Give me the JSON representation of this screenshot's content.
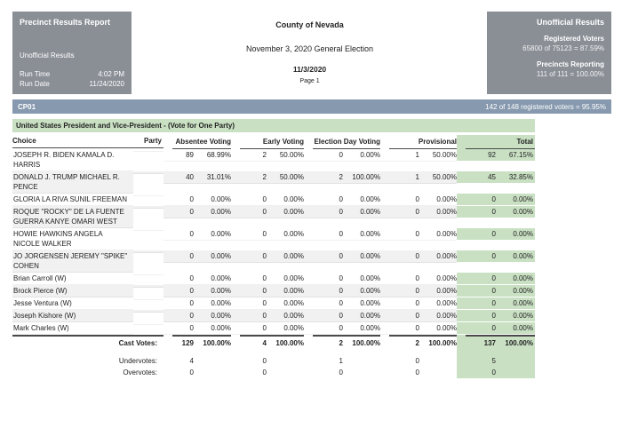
{
  "header": {
    "left": {
      "title": "Precinct Results Report",
      "status": "Unofficial Results",
      "run_time_label": "Run Time",
      "run_time_value": "4:02 PM",
      "run_date_label": "Run Date",
      "run_date_value": "11/24/2020"
    },
    "center": {
      "county": "County of Nevada",
      "election": "November 3, 2020 General Election",
      "date": "11/3/2020",
      "page": "Page 1"
    },
    "right": {
      "title": "Unofficial Results",
      "registered_label": "Registered Voters",
      "registered_value": "65800 of 75123 = 87.59%",
      "precincts_label": "Precincts Reporting",
      "precincts_value": "111 of 111 = 100.00%"
    }
  },
  "precinct": {
    "id": "CP01",
    "turnout": "142 of 148 registered voters = 95.95%"
  },
  "contest": {
    "title": "United States President and Vice-President - (Vote for One Party)",
    "columns": {
      "choice": "Choice",
      "party": "Party",
      "absentee": "Absentee Voting",
      "early": "Early Voting",
      "election_day": "Election Day Voting",
      "provisional": "Provisional",
      "total": "Total"
    },
    "rows": [
      {
        "choice": "JOSEPH R. BIDEN KAMALA D. HARRIS",
        "party": "",
        "cells": [
          [
            "89",
            "68.99%"
          ],
          [
            "2",
            "50.00%"
          ],
          [
            "0",
            "0.00%"
          ],
          [
            "1",
            "50.00%"
          ],
          [
            "92",
            "67.15%"
          ]
        ]
      },
      {
        "choice": "DONALD J. TRUMP MICHAEL R. PENCE",
        "party": "",
        "cells": [
          [
            "40",
            "31.01%"
          ],
          [
            "2",
            "50.00%"
          ],
          [
            "2",
            "100.00%"
          ],
          [
            "1",
            "50.00%"
          ],
          [
            "45",
            "32.85%"
          ]
        ]
      },
      {
        "choice": "GLORIA LA RIVA SUNIL FREEMAN",
        "party": "",
        "cells": [
          [
            "0",
            "0.00%"
          ],
          [
            "0",
            "0.00%"
          ],
          [
            "0",
            "0.00%"
          ],
          [
            "0",
            "0.00%"
          ],
          [
            "0",
            "0.00%"
          ]
        ]
      },
      {
        "choice": "ROQUE \"ROCKY\" DE LA FUENTE GUERRA KANYE OMARI WEST",
        "party": "",
        "cells": [
          [
            "0",
            "0.00%"
          ],
          [
            "0",
            "0.00%"
          ],
          [
            "0",
            "0.00%"
          ],
          [
            "0",
            "0.00%"
          ],
          [
            "0",
            "0.00%"
          ]
        ]
      },
      {
        "choice": "HOWIE HAWKINS ANGELA NICOLE WALKER",
        "party": "",
        "cells": [
          [
            "0",
            "0.00%"
          ],
          [
            "0",
            "0.00%"
          ],
          [
            "0",
            "0.00%"
          ],
          [
            "0",
            "0.00%"
          ],
          [
            "0",
            "0.00%"
          ]
        ]
      },
      {
        "choice": "JO JORGENSEN JEREMY \"SPIKE\" COHEN",
        "party": "",
        "cells": [
          [
            "0",
            "0.00%"
          ],
          [
            "0",
            "0.00%"
          ],
          [
            "0",
            "0.00%"
          ],
          [
            "0",
            "0.00%"
          ],
          [
            "0",
            "0.00%"
          ]
        ]
      },
      {
        "choice": "Brian Carroll (W)",
        "party": "",
        "cells": [
          [
            "0",
            "0.00%"
          ],
          [
            "0",
            "0.00%"
          ],
          [
            "0",
            "0.00%"
          ],
          [
            "0",
            "0.00%"
          ],
          [
            "0",
            "0.00%"
          ]
        ]
      },
      {
        "choice": "Brock Pierce (W)",
        "party": "",
        "cells": [
          [
            "0",
            "0.00%"
          ],
          [
            "0",
            "0.00%"
          ],
          [
            "0",
            "0.00%"
          ],
          [
            "0",
            "0.00%"
          ],
          [
            "0",
            "0.00%"
          ]
        ]
      },
      {
        "choice": "Jesse Ventura (W)",
        "party": "",
        "cells": [
          [
            "0",
            "0.00%"
          ],
          [
            "0",
            "0.00%"
          ],
          [
            "0",
            "0.00%"
          ],
          [
            "0",
            "0.00%"
          ],
          [
            "0",
            "0.00%"
          ]
        ]
      },
      {
        "choice": "Joseph Kishore (W)",
        "party": "",
        "cells": [
          [
            "0",
            "0.00%"
          ],
          [
            "0",
            "0.00%"
          ],
          [
            "0",
            "0.00%"
          ],
          [
            "0",
            "0.00%"
          ],
          [
            "0",
            "0.00%"
          ]
        ]
      },
      {
        "choice": "Mark Charles (W)",
        "party": "",
        "cells": [
          [
            "0",
            "0.00%"
          ],
          [
            "0",
            "0.00%"
          ],
          [
            "0",
            "0.00%"
          ],
          [
            "0",
            "0.00%"
          ],
          [
            "0",
            "0.00%"
          ]
        ]
      }
    ],
    "summary": [
      {
        "label": "Cast Votes:",
        "bold": true,
        "cells": [
          [
            "129",
            "100.00%"
          ],
          [
            "4",
            "100.00%"
          ],
          [
            "2",
            "100.00%"
          ],
          [
            "2",
            "100.00%"
          ],
          [
            "137",
            "100.00%"
          ]
        ]
      },
      {
        "label": "Undervotes:",
        "bold": false,
        "cells": [
          [
            "4",
            ""
          ],
          [
            "0",
            ""
          ],
          [
            "1",
            ""
          ],
          [
            "0",
            ""
          ],
          [
            "5",
            ""
          ]
        ]
      },
      {
        "label": "Overvotes:",
        "bold": false,
        "cells": [
          [
            "0",
            ""
          ],
          [
            "0",
            ""
          ],
          [
            "0",
            ""
          ],
          [
            "0",
            ""
          ],
          [
            "0",
            ""
          ]
        ]
      }
    ]
  },
  "colors": {
    "header_box_gray": "#8A8F96",
    "precinct_bar_blue": "#8699AE",
    "section_green": "#C9E0C3",
    "row_alt_gray": "#F1F1F1"
  }
}
